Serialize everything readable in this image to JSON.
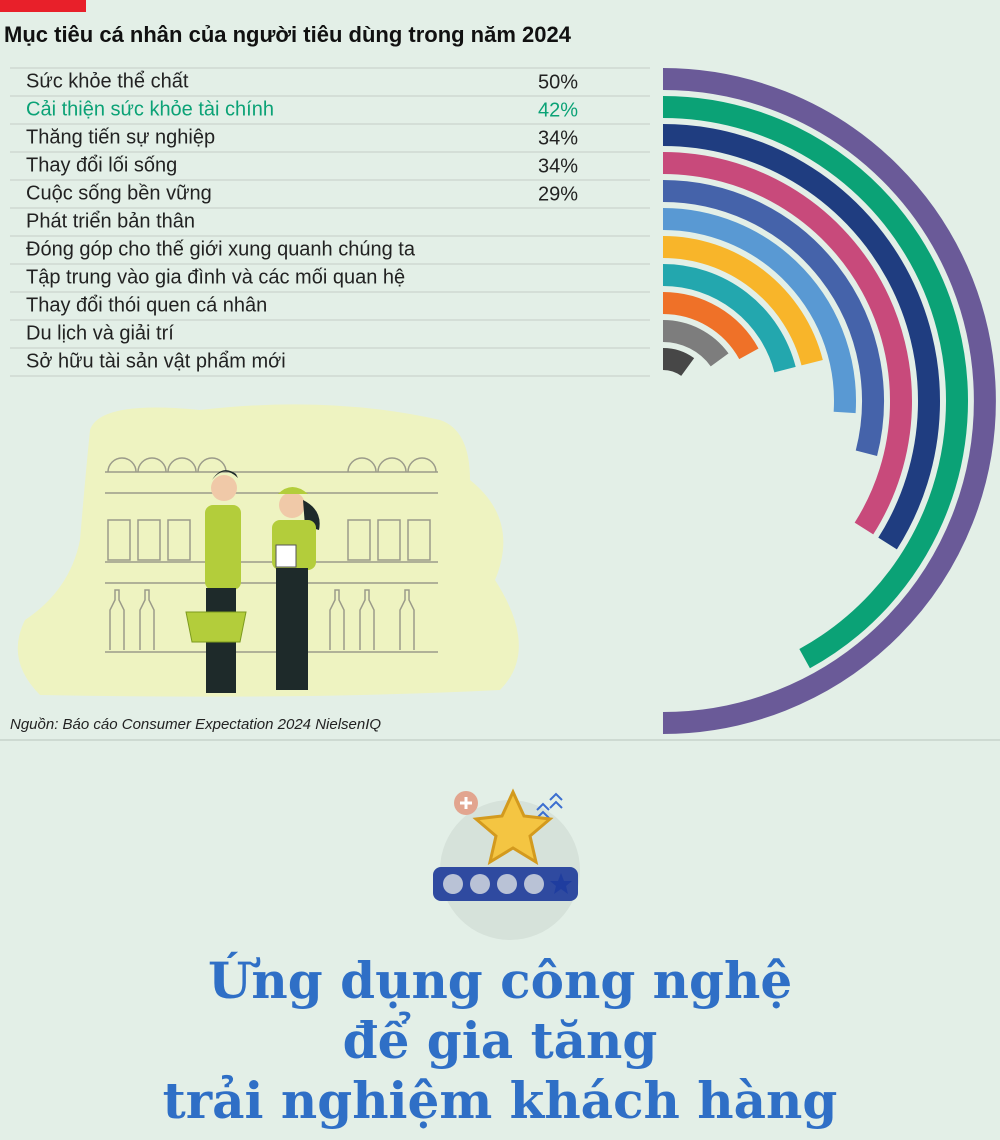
{
  "chart_data": {
    "type": "radial-bar",
    "title": "Mục tiêu cá nhân của người tiêu dùng trong năm 2024",
    "categories": [
      "Sức khỏe thể chất",
      "Cải thiện sức khỏe tài chính",
      "Thăng tiến sự nghiệp",
      "Thay đổi lối sống",
      "Cuộc sống bền vững",
      "Phát triển bản thân",
      "Đóng góp cho thế giới xung quanh chúng ta",
      "Tập trung vào gia đình và các mối quan hệ",
      "Thay đổi thói quen cá nhân",
      "Du lịch và giải trí",
      "Sở hữu tài sản vật phẩm mới"
    ],
    "values": [
      50,
      42,
      34,
      34,
      29,
      26,
      21,
      21,
      17,
      15,
      10
    ],
    "value_labels": [
      "50%",
      "42%",
      "34%",
      "34%",
      "29%",
      null,
      null,
      null,
      null,
      null,
      null
    ],
    "colors": [
      "#6a5a98",
      "#0ba276",
      "#1f3d80",
      "#c84a7b",
      "#4563aa",
      "#5999d3",
      "#f8b52a",
      "#23a7ae",
      "#ef7128",
      "#7d7d7d",
      "#474747"
    ],
    "highlight": 1,
    "source": "Nguồn: Báo cáo Consumer Expectation 2024 NielsenIQ"
  },
  "article": {
    "headline": [
      "Ứng dụng công nghệ",
      "để gia tăng",
      "trải nghiệm khách hàng"
    ]
  }
}
